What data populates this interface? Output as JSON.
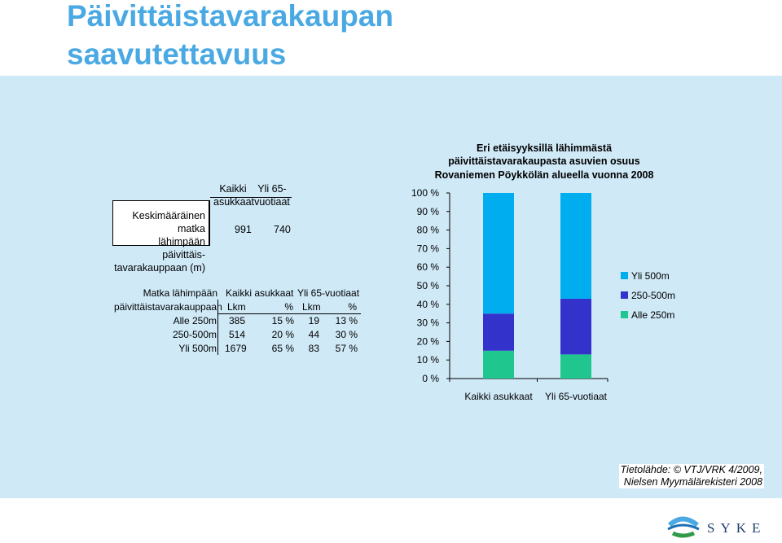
{
  "page": {
    "title_line1": "Päivittäistavarakaupan",
    "title_line2": "saavutettavuus"
  },
  "table_avg": {
    "row_label_lines": [
      "Keskimääräinen matka",
      "lähimpään päivittäis-",
      "tavarakauppaan (m)"
    ],
    "col1_lines": [
      "Kaikki",
      "asukkaat"
    ],
    "col2_lines": [
      "Yli 65-",
      "vuotiaat"
    ],
    "values": [
      "991",
      "740"
    ]
  },
  "table_dist": {
    "row_header_lines": [
      "Matka lähimpään",
      "päivittäistavarakauppaan"
    ],
    "group1": "Kaikki asukkaat",
    "group2": "Yli 65-vuotiaat",
    "sub": [
      "Lkm",
      "%",
      "Lkm",
      "%"
    ],
    "rows": [
      {
        "label": "Alle 250m",
        "lkm1": "385",
        "pct1": "15 %",
        "lkm2": "19",
        "pct2": "13 %"
      },
      {
        "label": "250-500m",
        "lkm1": "514",
        "pct1": "20 %",
        "lkm2": "44",
        "pct2": "30 %"
      },
      {
        "label": "Yli 500m",
        "lkm1": "1679",
        "pct1": "65 %",
        "lkm2": "83",
        "pct2": "57 %"
      }
    ]
  },
  "chart_data": {
    "type": "bar",
    "stacked": true,
    "percent_stacked": true,
    "title_lines": [
      "Eri etäisyyksillä lähimmästä",
      "päivittäistavarakaupasta asuvien osuus",
      "Rovaniemen Pöykkölän alueella vuonna 2008"
    ],
    "categories": [
      "Kaikki asukkaat",
      "Yli 65-vuotiaat"
    ],
    "series": [
      {
        "name": "Alle 250m",
        "values": [
          15,
          13
        ],
        "color": "#1fc68e"
      },
      {
        "name": "250-500m",
        "values": [
          20,
          30
        ],
        "color": "#3333cc"
      },
      {
        "name": "Yli 500m",
        "values": [
          65,
          57
        ],
        "color": "#00aeef"
      }
    ],
    "legend_order": [
      "Yli 500m",
      "250-500m",
      "Alle 250m"
    ],
    "ylim": [
      0,
      100
    ],
    "yticks": [
      "0 %",
      "10 %",
      "20 %",
      "30 %",
      "40 %",
      "50 %",
      "60 %",
      "70 %",
      "80 %",
      "90 %",
      "100 %"
    ],
    "legend_position": "right",
    "grid": false
  },
  "source": {
    "line1": "Tietolähde: © VTJ/VRK 4/2009,",
    "line2": "Nielsen Myymälärekisteri 2008"
  },
  "logo": {
    "text": "SYKE"
  }
}
